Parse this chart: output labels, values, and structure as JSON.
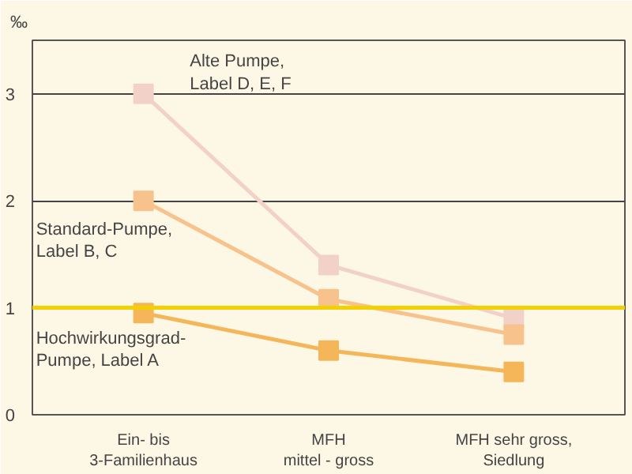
{
  "chart_data": {
    "type": "line",
    "ylabel": "‰",
    "categories": [
      "Ein- bis\n3-Familienhaus",
      "MFH\nmittel - gross",
      "MFH sehr gross,\nSiedlung"
    ],
    "series": [
      {
        "name": "Alte Pumpe,\nLabel D, E, F",
        "color": "#f2d2c8",
        "values": [
          3.0,
          1.4,
          0.9
        ]
      },
      {
        "name": "Standard-Pumpe,\nLabel B, C",
        "color": "#f7c28c",
        "values": [
          2.0,
          1.08,
          0.75
        ]
      },
      {
        "name": "Hochwirkungsgrad-\nPumpe, Label A",
        "color": "#f5b65a",
        "values": [
          0.95,
          0.6,
          0.4
        ]
      }
    ],
    "ylim": [
      0,
      3.5
    ],
    "yticks": [
      0,
      1,
      2,
      3
    ],
    "grid": "y",
    "marker": "square",
    "ref_lines": [
      {
        "axis": "y",
        "value": 1,
        "color": "#f5d000"
      }
    ]
  }
}
